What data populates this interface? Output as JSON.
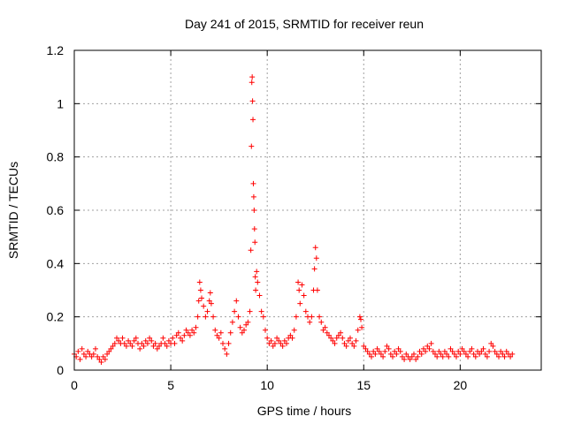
{
  "chart_data": {
    "type": "scatter",
    "title": "Day 241 of 2015, SRMTID for receiver reun",
    "xlabel": "GPS time / hours",
    "ylabel": "SRMTID / TECUs",
    "xlim": [
      0,
      24.2
    ],
    "ylim": [
      0,
      1.2
    ],
    "x_ticks": [
      0,
      5,
      10,
      15,
      20
    ],
    "x_tick_labels": [
      "0",
      "5",
      "10",
      "15",
      "20"
    ],
    "y_ticks": [
      0,
      0.2,
      0.4,
      0.6,
      0.8,
      1,
      1.2
    ],
    "y_tick_labels": [
      "0",
      "0.2",
      "0.4",
      "0.6",
      "0.8",
      "1",
      "1.2"
    ],
    "grid": true,
    "marker": "+",
    "color": "#ff0000",
    "series": [
      {
        "name": "SRMTID",
        "points": [
          [
            0.0,
            0.06
          ],
          [
            0.1,
            0.05
          ],
          [
            0.2,
            0.07
          ],
          [
            0.3,
            0.04
          ],
          [
            0.4,
            0.08
          ],
          [
            0.5,
            0.06
          ],
          [
            0.6,
            0.05
          ],
          [
            0.7,
            0.07
          ],
          [
            0.8,
            0.06
          ],
          [
            0.9,
            0.05
          ],
          [
            1.0,
            0.06
          ],
          [
            1.1,
            0.08
          ],
          [
            1.2,
            0.05
          ],
          [
            1.3,
            0.04
          ],
          [
            1.4,
            0.03
          ],
          [
            1.5,
            0.05
          ],
          [
            1.6,
            0.04
          ],
          [
            1.7,
            0.06
          ],
          [
            1.8,
            0.07
          ],
          [
            1.9,
            0.08
          ],
          [
            2.0,
            0.09
          ],
          [
            2.1,
            0.1
          ],
          [
            2.2,
            0.12
          ],
          [
            2.3,
            0.11
          ],
          [
            2.4,
            0.1
          ],
          [
            2.5,
            0.12
          ],
          [
            2.6,
            0.1
          ],
          [
            2.7,
            0.09
          ],
          [
            2.8,
            0.11
          ],
          [
            2.9,
            0.1
          ],
          [
            3.0,
            0.09
          ],
          [
            3.1,
            0.11
          ],
          [
            3.2,
            0.12
          ],
          [
            3.3,
            0.1
          ],
          [
            3.4,
            0.08
          ],
          [
            3.5,
            0.1
          ],
          [
            3.6,
            0.09
          ],
          [
            3.7,
            0.11
          ],
          [
            3.8,
            0.1
          ],
          [
            3.9,
            0.12
          ],
          [
            4.0,
            0.11
          ],
          [
            4.1,
            0.09
          ],
          [
            4.2,
            0.1
          ],
          [
            4.3,
            0.08
          ],
          [
            4.4,
            0.09
          ],
          [
            4.5,
            0.1
          ],
          [
            4.6,
            0.12
          ],
          [
            4.7,
            0.1
          ],
          [
            4.8,
            0.09
          ],
          [
            4.9,
            0.11
          ],
          [
            5.0,
            0.1
          ],
          [
            5.1,
            0.12
          ],
          [
            5.2,
            0.1
          ],
          [
            5.3,
            0.13
          ],
          [
            5.4,
            0.14
          ],
          [
            5.5,
            0.12
          ],
          [
            5.6,
            0.11
          ],
          [
            5.7,
            0.13
          ],
          [
            5.8,
            0.15
          ],
          [
            5.9,
            0.14
          ],
          [
            6.0,
            0.13
          ],
          [
            6.1,
            0.15
          ],
          [
            6.2,
            0.14
          ],
          [
            6.3,
            0.16
          ],
          [
            6.4,
            0.2
          ],
          [
            6.45,
            0.26
          ],
          [
            6.5,
            0.33
          ],
          [
            6.55,
            0.3
          ],
          [
            6.6,
            0.27
          ],
          [
            6.7,
            0.24
          ],
          [
            6.8,
            0.2
          ],
          [
            6.9,
            0.22
          ],
          [
            7.0,
            0.26
          ],
          [
            7.05,
            0.29
          ],
          [
            7.1,
            0.25
          ],
          [
            7.2,
            0.2
          ],
          [
            7.3,
            0.15
          ],
          [
            7.4,
            0.13
          ],
          [
            7.5,
            0.12
          ],
          [
            7.6,
            0.14
          ],
          [
            7.7,
            0.1
          ],
          [
            7.8,
            0.08
          ],
          [
            7.9,
            0.06
          ],
          [
            8.0,
            0.1
          ],
          [
            8.1,
            0.14
          ],
          [
            8.2,
            0.18
          ],
          [
            8.3,
            0.22
          ],
          [
            8.4,
            0.26
          ],
          [
            8.5,
            0.2
          ],
          [
            8.6,
            0.16
          ],
          [
            8.7,
            0.14
          ],
          [
            8.8,
            0.15
          ],
          [
            8.9,
            0.17
          ],
          [
            9.0,
            0.18
          ],
          [
            9.1,
            0.22
          ],
          [
            9.15,
            0.45
          ],
          [
            9.18,
            0.84
          ],
          [
            9.2,
            1.08
          ],
          [
            9.22,
            1.1
          ],
          [
            9.24,
            1.01
          ],
          [
            9.26,
            0.94
          ],
          [
            9.28,
            0.7
          ],
          [
            9.3,
            0.65
          ],
          [
            9.32,
            0.6
          ],
          [
            9.34,
            0.53
          ],
          [
            9.36,
            0.48
          ],
          [
            9.38,
            0.35
          ],
          [
            9.4,
            0.3
          ],
          [
            9.45,
            0.37
          ],
          [
            9.5,
            0.33
          ],
          [
            9.6,
            0.28
          ],
          [
            9.7,
            0.22
          ],
          [
            9.8,
            0.2
          ],
          [
            9.9,
            0.15
          ],
          [
            10.0,
            0.12
          ],
          [
            10.1,
            0.1
          ],
          [
            10.2,
            0.11
          ],
          [
            10.3,
            0.09
          ],
          [
            10.4,
            0.1
          ],
          [
            10.5,
            0.12
          ],
          [
            10.6,
            0.11
          ],
          [
            10.7,
            0.1
          ],
          [
            10.8,
            0.09
          ],
          [
            10.9,
            0.11
          ],
          [
            11.0,
            0.1
          ],
          [
            11.1,
            0.12
          ],
          [
            11.2,
            0.13
          ],
          [
            11.3,
            0.12
          ],
          [
            11.4,
            0.15
          ],
          [
            11.5,
            0.2
          ],
          [
            11.6,
            0.33
          ],
          [
            11.65,
            0.3
          ],
          [
            11.7,
            0.25
          ],
          [
            11.8,
            0.32
          ],
          [
            11.9,
            0.28
          ],
          [
            12.0,
            0.22
          ],
          [
            12.1,
            0.2
          ],
          [
            12.2,
            0.18
          ],
          [
            12.3,
            0.2
          ],
          [
            12.4,
            0.3
          ],
          [
            12.45,
            0.38
          ],
          [
            12.5,
            0.46
          ],
          [
            12.55,
            0.42
          ],
          [
            12.6,
            0.3
          ],
          [
            12.7,
            0.2
          ],
          [
            12.8,
            0.18
          ],
          [
            12.9,
            0.15
          ],
          [
            13.0,
            0.16
          ],
          [
            13.1,
            0.14
          ],
          [
            13.2,
            0.13
          ],
          [
            13.3,
            0.12
          ],
          [
            13.4,
            0.11
          ],
          [
            13.5,
            0.1
          ],
          [
            13.6,
            0.12
          ],
          [
            13.7,
            0.13
          ],
          [
            13.8,
            0.14
          ],
          [
            13.9,
            0.12
          ],
          [
            14.0,
            0.1
          ],
          [
            14.1,
            0.09
          ],
          [
            14.2,
            0.11
          ],
          [
            14.3,
            0.12
          ],
          [
            14.4,
            0.1
          ],
          [
            14.5,
            0.09
          ],
          [
            14.6,
            0.11
          ],
          [
            14.7,
            0.15
          ],
          [
            14.8,
            0.2
          ],
          [
            14.85,
            0.19
          ],
          [
            14.9,
            0.16
          ],
          [
            15.0,
            0.09
          ],
          [
            15.1,
            0.08
          ],
          [
            15.2,
            0.07
          ],
          [
            15.3,
            0.06
          ],
          [
            15.4,
            0.05
          ],
          [
            15.5,
            0.07
          ],
          [
            15.6,
            0.06
          ],
          [
            15.7,
            0.08
          ],
          [
            15.8,
            0.07
          ],
          [
            15.9,
            0.06
          ],
          [
            16.0,
            0.05
          ],
          [
            16.1,
            0.07
          ],
          [
            16.2,
            0.09
          ],
          [
            16.3,
            0.08
          ],
          [
            16.4,
            0.06
          ],
          [
            16.5,
            0.05
          ],
          [
            16.6,
            0.07
          ],
          [
            16.7,
            0.06
          ],
          [
            16.8,
            0.08
          ],
          [
            16.9,
            0.07
          ],
          [
            17.0,
            0.05
          ],
          [
            17.1,
            0.04
          ],
          [
            17.2,
            0.06
          ],
          [
            17.3,
            0.05
          ],
          [
            17.4,
            0.04
          ],
          [
            17.5,
            0.05
          ],
          [
            17.6,
            0.06
          ],
          [
            17.7,
            0.04
          ],
          [
            17.8,
            0.05
          ],
          [
            17.9,
            0.07
          ],
          [
            18.0,
            0.06
          ],
          [
            18.1,
            0.08
          ],
          [
            18.2,
            0.07
          ],
          [
            18.3,
            0.09
          ],
          [
            18.4,
            0.08
          ],
          [
            18.5,
            0.1
          ],
          [
            18.6,
            0.07
          ],
          [
            18.7,
            0.06
          ],
          [
            18.8,
            0.05
          ],
          [
            18.9,
            0.07
          ],
          [
            19.0,
            0.06
          ],
          [
            19.1,
            0.05
          ],
          [
            19.2,
            0.07
          ],
          [
            19.3,
            0.06
          ],
          [
            19.4,
            0.05
          ],
          [
            19.5,
            0.08
          ],
          [
            19.6,
            0.07
          ],
          [
            19.7,
            0.06
          ],
          [
            19.8,
            0.05
          ],
          [
            19.9,
            0.07
          ],
          [
            20.0,
            0.06
          ],
          [
            20.1,
            0.08
          ],
          [
            20.2,
            0.07
          ],
          [
            20.3,
            0.06
          ],
          [
            20.4,
            0.05
          ],
          [
            20.5,
            0.07
          ],
          [
            20.6,
            0.08
          ],
          [
            20.7,
            0.06
          ],
          [
            20.8,
            0.05
          ],
          [
            20.9,
            0.07
          ],
          [
            21.0,
            0.06
          ],
          [
            21.1,
            0.07
          ],
          [
            21.2,
            0.08
          ],
          [
            21.3,
            0.06
          ],
          [
            21.4,
            0.05
          ],
          [
            21.5,
            0.07
          ],
          [
            21.6,
            0.1
          ],
          [
            21.7,
            0.09
          ],
          [
            21.8,
            0.07
          ],
          [
            21.9,
            0.06
          ],
          [
            22.0,
            0.05
          ],
          [
            22.1,
            0.07
          ],
          [
            22.2,
            0.06
          ],
          [
            22.3,
            0.05
          ],
          [
            22.4,
            0.07
          ],
          [
            22.5,
            0.06
          ],
          [
            22.6,
            0.05
          ],
          [
            22.7,
            0.06
          ]
        ]
      }
    ]
  }
}
